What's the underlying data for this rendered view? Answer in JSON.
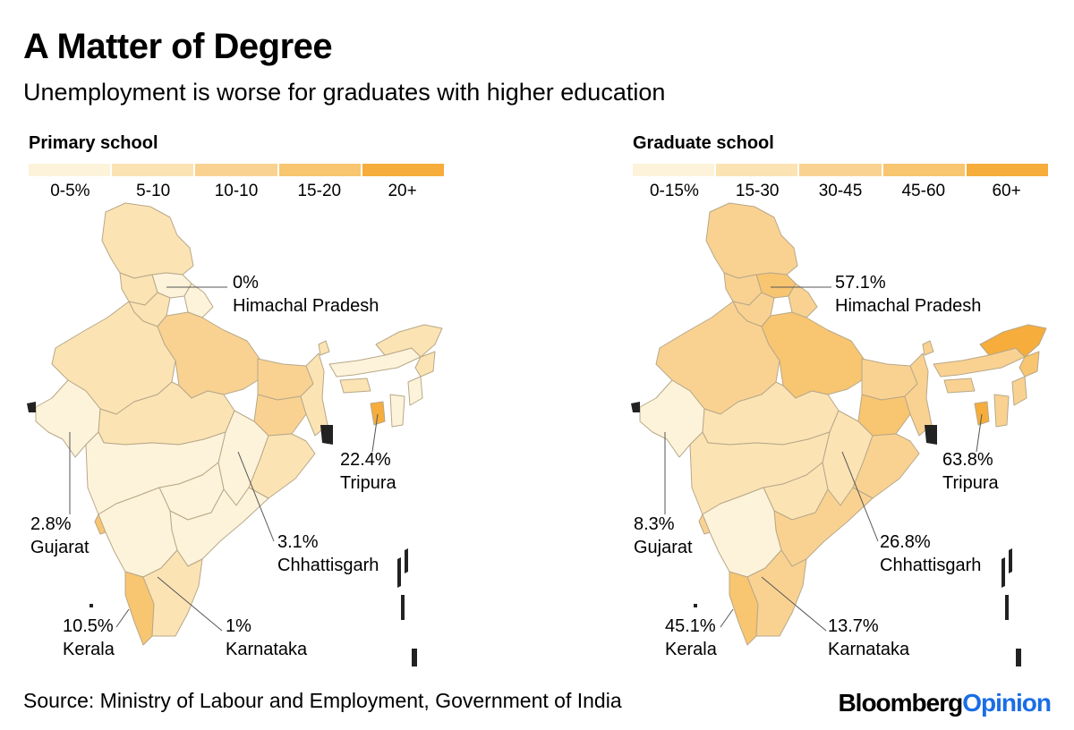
{
  "title": "A Matter of Degree",
  "subtitle": "Unemployment is worse for graduates with higher education",
  "colors": {
    "level1": "#fdf3da",
    "level2": "#fbe3b4",
    "level3": "#f9d292",
    "level4": "#f8c571",
    "level5": "#f6ad3b",
    "border": "#b8a888",
    "outline": "#111111"
  },
  "maps": [
    {
      "panel_title": "Primary school",
      "legend": [
        "0-5%",
        "5-10",
        "10-10",
        "15-20",
        "20+"
      ],
      "callouts": [
        {
          "value": "0%",
          "state": "Himachal Pradesh"
        },
        {
          "value": "22.4%",
          "state": "Tripura"
        },
        {
          "value": "2.8%",
          "state": "Gujarat"
        },
        {
          "value": "3.1%",
          "state": "Chhattisgarh"
        },
        {
          "value": "10.5%",
          "state": "Kerala"
        },
        {
          "value": "1%",
          "state": "Karnataka"
        }
      ]
    },
    {
      "panel_title": "Graduate school",
      "legend": [
        "0-15%",
        "15-30",
        "30-45",
        "45-60",
        "60+"
      ],
      "callouts": [
        {
          "value": "57.1%",
          "state": "Himachal Pradesh"
        },
        {
          "value": "63.8%",
          "state": "Tripura"
        },
        {
          "value": "8.3%",
          "state": "Gujarat"
        },
        {
          "value": "26.8%",
          "state": "Chhattisgarh"
        },
        {
          "value": "45.1%",
          "state": "Kerala"
        },
        {
          "value": "13.7%",
          "state": "Karnataka"
        }
      ]
    }
  ],
  "source": "Source: Ministry of Labour and Employment, Government of India",
  "brand": {
    "part1": "Bloomberg",
    "part2": "Opinion"
  }
}
